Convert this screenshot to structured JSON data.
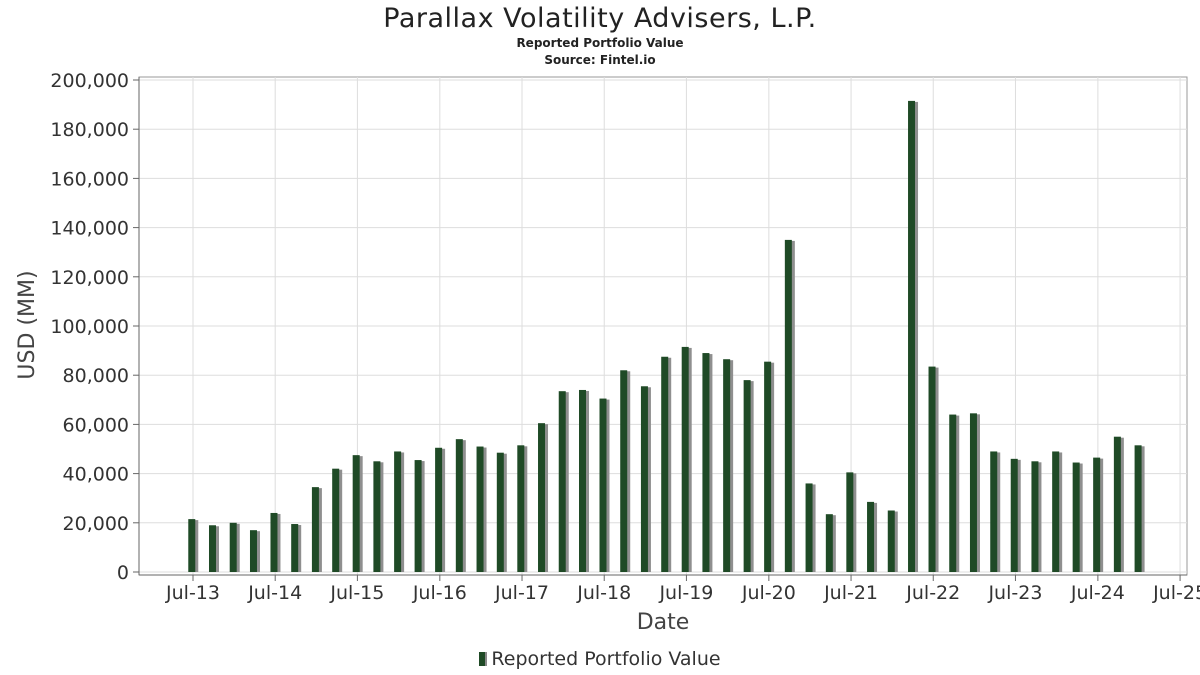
{
  "chart_data": {
    "type": "bar",
    "title": "Parallax Volatility Advisers, L.P.",
    "subtitle_lines": [
      "Reported Portfolio Value",
      "Source: Fintel.io"
    ],
    "xlabel": "Date",
    "ylabel": "USD (MM)",
    "ylim": [
      0,
      200000
    ],
    "y_ticks": [
      "0",
      "20,000",
      "40,000",
      "60,000",
      "80,000",
      "100,000",
      "120,000",
      "140,000",
      "160,000",
      "180,000",
      "200,000"
    ],
    "x_ticks": [
      "Jul-13",
      "Jul-14",
      "Jul-15",
      "Jul-16",
      "Jul-17",
      "Jul-18",
      "Jul-19",
      "Jul-20",
      "Jul-21",
      "Jul-22",
      "Jul-23",
      "Jul-24",
      "Jul-25"
    ],
    "grid": true,
    "legend_position": "bottom",
    "series": [
      {
        "name": "Reported Portfolio Value",
        "color": "#1f4a26",
        "x": [
          "2013-06-30",
          "2013-09-30",
          "2013-12-31",
          "2014-03-31",
          "2014-06-30",
          "2014-09-30",
          "2014-12-31",
          "2015-03-31",
          "2015-06-30",
          "2015-09-30",
          "2015-12-31",
          "2016-03-31",
          "2016-06-30",
          "2016-09-30",
          "2016-12-31",
          "2017-03-31",
          "2017-06-30",
          "2017-09-30",
          "2017-12-31",
          "2018-03-31",
          "2018-06-30",
          "2018-09-30",
          "2018-12-31",
          "2019-03-31",
          "2019-06-30",
          "2019-09-30",
          "2019-12-31",
          "2020-03-31",
          "2020-06-30",
          "2020-09-30",
          "2020-12-31",
          "2021-03-31",
          "2021-06-30",
          "2021-09-30",
          "2021-12-31",
          "2022-03-31",
          "2022-06-30",
          "2022-09-30",
          "2022-12-31",
          "2023-03-31",
          "2023-06-30",
          "2023-09-30",
          "2023-12-31",
          "2024-03-31",
          "2024-06-30",
          "2024-09-30",
          "2024-12-31"
        ],
        "values": [
          21500,
          19000,
          20000,
          17000,
          24000,
          19500,
          34500,
          42000,
          47500,
          45000,
          49000,
          45500,
          50500,
          54000,
          51000,
          48500,
          51500,
          60500,
          73500,
          74000,
          70500,
          82000,
          75500,
          87500,
          91500,
          89000,
          86500,
          78000,
          85500,
          135000,
          36000,
          23500,
          40500,
          28500,
          25000,
          191500,
          83500,
          64000,
          64500,
          49000,
          46000,
          45000,
          49000,
          44500,
          46500,
          55000,
          51500
        ]
      }
    ]
  },
  "legend": {
    "label": "Reported Portfolio Value"
  }
}
